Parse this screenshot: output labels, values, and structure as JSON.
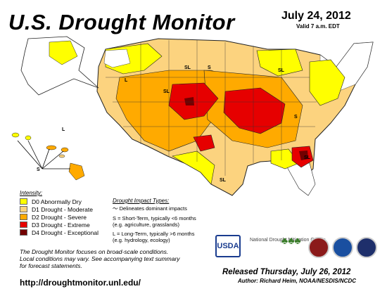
{
  "header": {
    "title": "U.S. Drought Monitor",
    "date": "July 24, 2012",
    "valid": "Valid 7 a.m. EDT"
  },
  "colors": {
    "d0": "#ffff00",
    "d1": "#fcd37f",
    "d2": "#ffaa00",
    "d3": "#e60000",
    "d4": "#730000"
  },
  "legend": {
    "title": "Intensity:",
    "items": [
      {
        "label": "D0 Abnormally Dry",
        "color": "#ffff00"
      },
      {
        "label": "D1 Drought - Moderate",
        "color": "#fcd37f"
      },
      {
        "label": "D2 Drought - Severe",
        "color": "#ffaa00"
      },
      {
        "label": "D3 Drought - Extreme",
        "color": "#e60000"
      },
      {
        "label": "D4 Drought - Exceptional",
        "color": "#730000"
      }
    ]
  },
  "impact": {
    "title": "Drought Impact Types:",
    "delineates": "Delineates dominant impacts",
    "s_line1": "S = Short-Term, typically <6 months",
    "s_line2": "(e.g. agriculture, grasslands)",
    "l_line1": "L = Long-Term, typically >6 months",
    "l_line2": "(e.g. hydrology, ecology)"
  },
  "note": {
    "line1": "The Drought Monitor focuses on broad-scale conditions.",
    "line2": "Local conditions may vary. See accompanying text summary",
    "line3": "for forecast statements."
  },
  "url": "http://droughtmonitor.unl.edu/",
  "released": "Released Thursday, July 26, 2012",
  "author": "Author: Richard Heim, NOAA/NESDIS/NCDC",
  "logos": {
    "usda": "USDA",
    "nmc": "National Drought Mitigation Center"
  },
  "map_labels": {
    "s": "S",
    "l": "L",
    "sl": "SL"
  }
}
